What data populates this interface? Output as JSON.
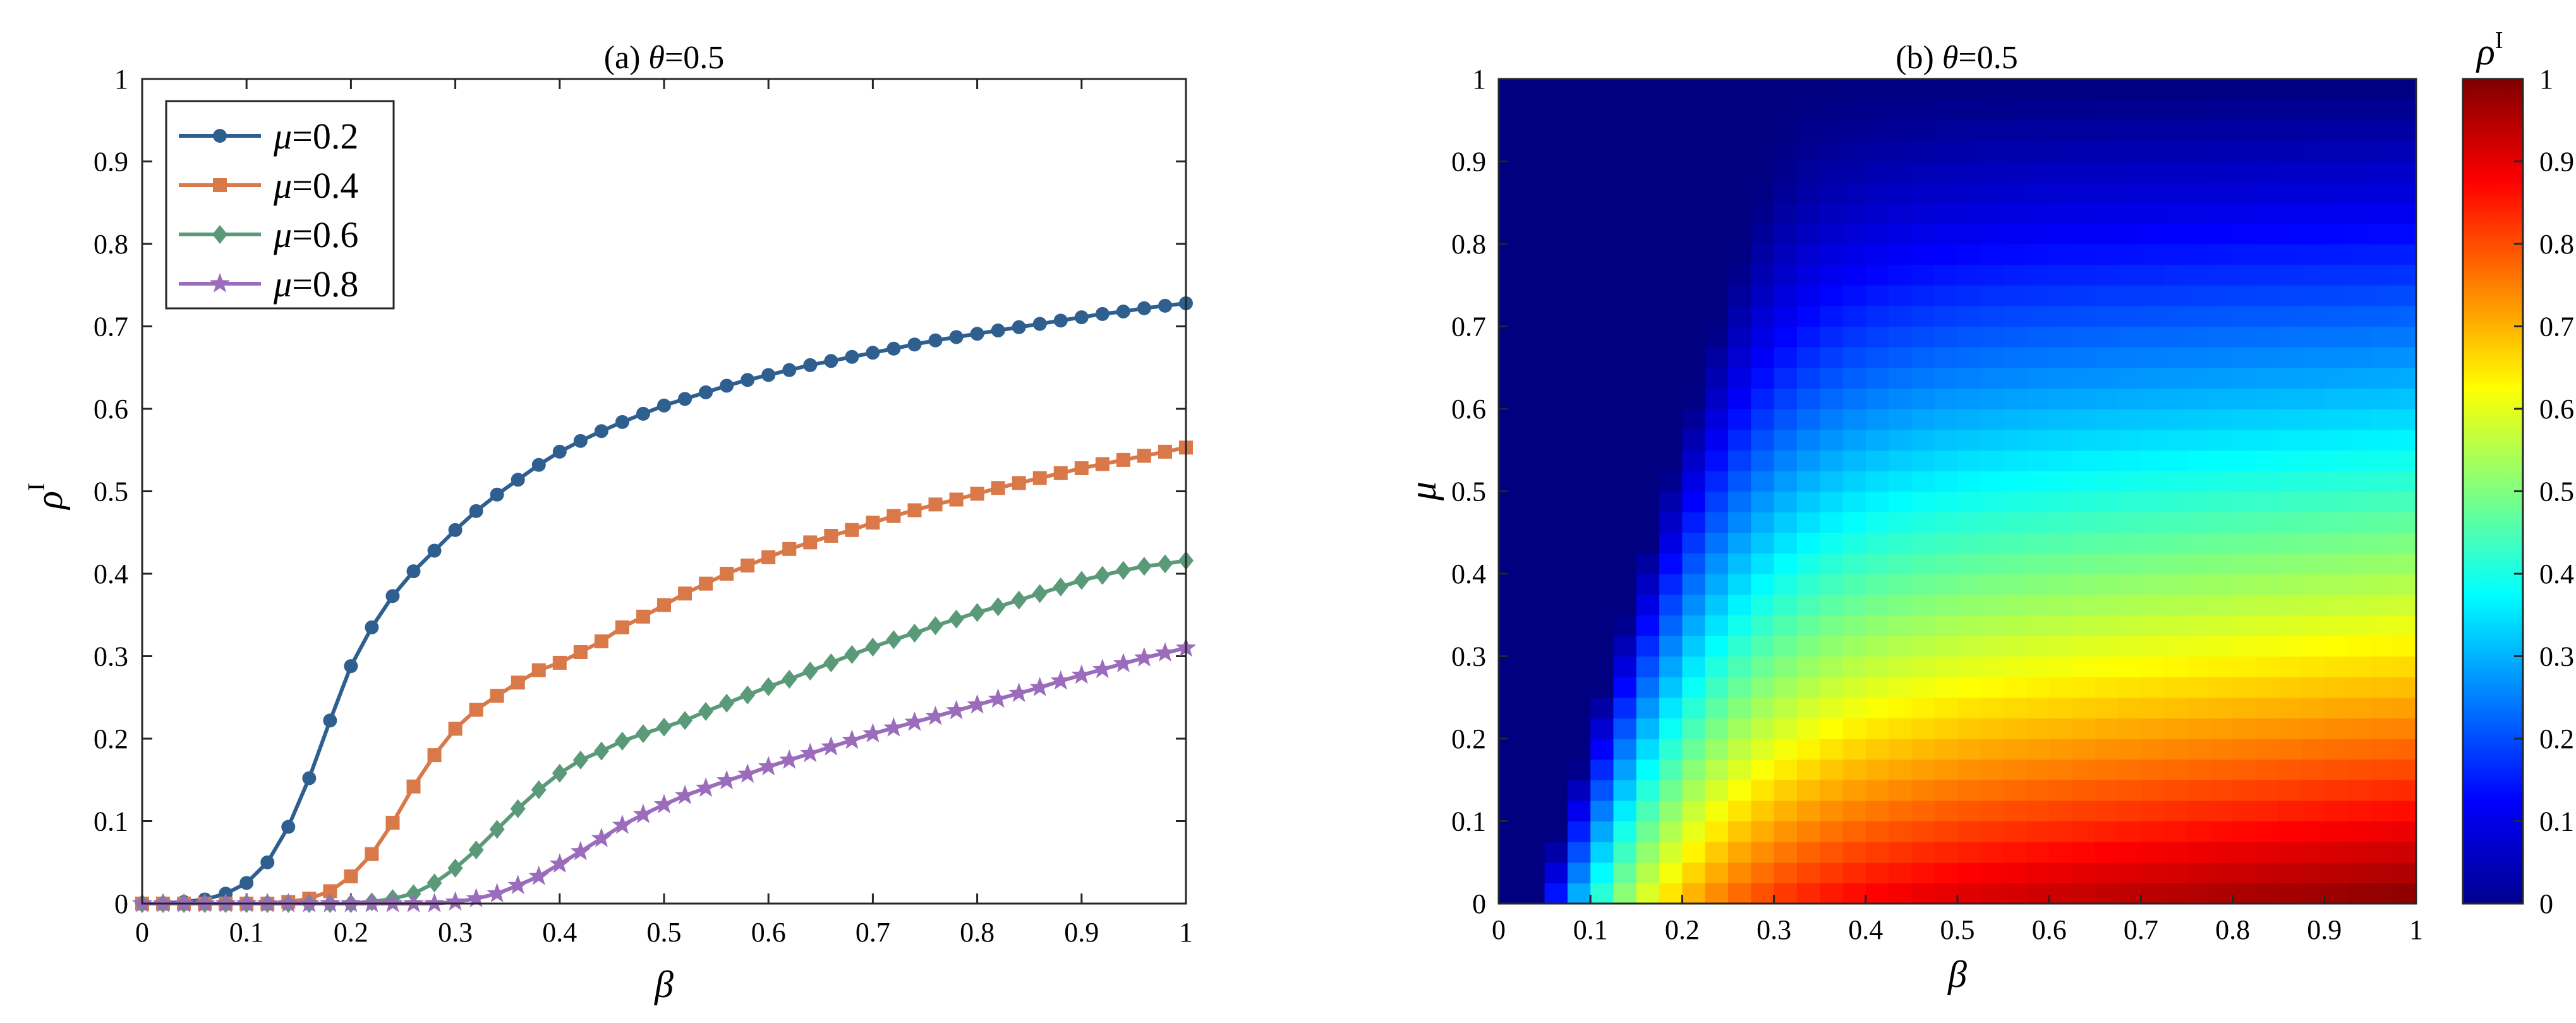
{
  "chart_data": [
    {
      "type": "line",
      "title_prefix": "(a) ",
      "title_var": "θ",
      "title_rest": "=0.5",
      "xlabel": "β",
      "ylabel": "ρ",
      "ylabel_sup": "I",
      "xlim": [
        0,
        1
      ],
      "ylim": [
        0,
        1
      ],
      "xticks": [
        "0",
        "0.1",
        "0.2",
        "0.3",
        "0.4",
        "0.5",
        "0.6",
        "0.7",
        "0.8",
        "0.9",
        "1"
      ],
      "yticks": [
        "0",
        "0.1",
        "0.2",
        "0.3",
        "0.4",
        "0.5",
        "0.6",
        "0.7",
        "0.8",
        "0.9",
        "1"
      ],
      "legend_position": "top-left",
      "series": [
        {
          "name": "=0.2",
          "name_var": "μ",
          "color": "#2e5f8f",
          "marker": "circle",
          "x": [
            0,
            0.02,
            0.04,
            0.06,
            0.08,
            0.1,
            0.12,
            0.14,
            0.16,
            0.18,
            0.2,
            0.22,
            0.24,
            0.26,
            0.28,
            0.3,
            0.32,
            0.34,
            0.36,
            0.38,
            0.4,
            0.42,
            0.44,
            0.46,
            0.48,
            0.5,
            0.52,
            0.54,
            0.56,
            0.58,
            0.6,
            0.62,
            0.64,
            0.66,
            0.68,
            0.7,
            0.72,
            0.74,
            0.76,
            0.78,
            0.8,
            0.82,
            0.84,
            0.86,
            0.88,
            0.9,
            0.92,
            0.94,
            0.96,
            0.98,
            1.0
          ],
          "y": [
            0,
            0,
            0.002,
            0.005,
            0.012,
            0.025,
            0.05,
            0.093,
            0.152,
            0.222,
            0.288,
            0.335,
            0.373,
            0.403,
            0.428,
            0.453,
            0.476,
            0.496,
            0.514,
            0.532,
            0.548,
            0.561,
            0.573,
            0.584,
            0.594,
            0.604,
            0.612,
            0.62,
            0.628,
            0.635,
            0.641,
            0.647,
            0.653,
            0.658,
            0.663,
            0.668,
            0.673,
            0.678,
            0.683,
            0.687,
            0.691,
            0.695,
            0.699,
            0.703,
            0.707,
            0.711,
            0.715,
            0.718,
            0.722,
            0.725,
            0.728
          ]
        },
        {
          "name": "=0.4",
          "name_var": "μ",
          "color": "#d9794a",
          "marker": "square",
          "x": [
            0,
            0.02,
            0.04,
            0.06,
            0.08,
            0.1,
            0.12,
            0.14,
            0.16,
            0.18,
            0.2,
            0.22,
            0.24,
            0.26,
            0.28,
            0.3,
            0.32,
            0.34,
            0.36,
            0.38,
            0.4,
            0.42,
            0.44,
            0.46,
            0.48,
            0.5,
            0.52,
            0.54,
            0.56,
            0.58,
            0.6,
            0.62,
            0.64,
            0.66,
            0.68,
            0.7,
            0.72,
            0.74,
            0.76,
            0.78,
            0.8,
            0.82,
            0.84,
            0.86,
            0.88,
            0.9,
            0.92,
            0.94,
            0.96,
            0.98,
            1.0
          ],
          "y": [
            0,
            0,
            0,
            0,
            0,
            0,
            0,
            0.002,
            0.006,
            0.015,
            0.033,
            0.06,
            0.098,
            0.142,
            0.18,
            0.212,
            0.235,
            0.252,
            0.268,
            0.283,
            0.292,
            0.305,
            0.318,
            0.335,
            0.348,
            0.362,
            0.376,
            0.388,
            0.4,
            0.41,
            0.42,
            0.43,
            0.438,
            0.446,
            0.453,
            0.462,
            0.47,
            0.477,
            0.484,
            0.49,
            0.497,
            0.504,
            0.51,
            0.516,
            0.522,
            0.528,
            0.533,
            0.538,
            0.543,
            0.548,
            0.553
          ]
        },
        {
          "name": "=0.6",
          "name_var": "μ",
          "color": "#5a9a78",
          "marker": "diamond",
          "x": [
            0,
            0.02,
            0.04,
            0.06,
            0.08,
            0.1,
            0.12,
            0.14,
            0.16,
            0.18,
            0.2,
            0.22,
            0.24,
            0.26,
            0.28,
            0.3,
            0.32,
            0.34,
            0.36,
            0.38,
            0.4,
            0.42,
            0.44,
            0.46,
            0.48,
            0.5,
            0.52,
            0.54,
            0.56,
            0.58,
            0.6,
            0.62,
            0.64,
            0.66,
            0.68,
            0.7,
            0.72,
            0.74,
            0.76,
            0.78,
            0.8,
            0.82,
            0.84,
            0.86,
            0.88,
            0.9,
            0.92,
            0.94,
            0.96,
            0.98,
            1.0
          ],
          "y": [
            0,
            0,
            0,
            0,
            0,
            0,
            0,
            0,
            0,
            0,
            0,
            0.002,
            0.006,
            0.012,
            0.025,
            0.043,
            0.065,
            0.09,
            0.115,
            0.138,
            0.158,
            0.174,
            0.185,
            0.197,
            0.206,
            0.214,
            0.222,
            0.233,
            0.243,
            0.253,
            0.263,
            0.272,
            0.282,
            0.292,
            0.302,
            0.311,
            0.32,
            0.328,
            0.337,
            0.345,
            0.353,
            0.36,
            0.368,
            0.376,
            0.384,
            0.392,
            0.398,
            0.404,
            0.409,
            0.412,
            0.416
          ]
        },
        {
          "name": "=0.8",
          "name_var": "μ",
          "color": "#9b6cbc",
          "marker": "star",
          "x": [
            0,
            0.02,
            0.04,
            0.06,
            0.08,
            0.1,
            0.12,
            0.14,
            0.16,
            0.18,
            0.2,
            0.22,
            0.24,
            0.26,
            0.28,
            0.3,
            0.32,
            0.34,
            0.36,
            0.38,
            0.4,
            0.42,
            0.44,
            0.46,
            0.48,
            0.5,
            0.52,
            0.54,
            0.56,
            0.58,
            0.6,
            0.62,
            0.64,
            0.66,
            0.68,
            0.7,
            0.72,
            0.74,
            0.76,
            0.78,
            0.8,
            0.82,
            0.84,
            0.86,
            0.88,
            0.9,
            0.92,
            0.94,
            0.96,
            0.98,
            1.0
          ],
          "y": [
            0,
            0,
            0,
            0,
            0,
            0,
            0,
            0,
            0,
            0,
            0,
            0,
            0,
            0,
            0,
            0.002,
            0.006,
            0.012,
            0.022,
            0.033,
            0.048,
            0.063,
            0.079,
            0.095,
            0.108,
            0.12,
            0.131,
            0.14,
            0.149,
            0.157,
            0.166,
            0.174,
            0.182,
            0.19,
            0.198,
            0.206,
            0.213,
            0.22,
            0.227,
            0.234,
            0.241,
            0.248,
            0.255,
            0.262,
            0.27,
            0.277,
            0.284,
            0.291,
            0.298,
            0.304,
            0.31
          ]
        }
      ]
    },
    {
      "type": "heatmap",
      "title_prefix": "(b) ",
      "title_var": "θ",
      "title_rest": "=0.5",
      "xlabel": "β",
      "ylabel": "μ",
      "xlim": [
        0,
        1
      ],
      "ylim": [
        0,
        1
      ],
      "grid_cells": [
        40,
        40
      ],
      "xticks": [
        "0",
        "0.1",
        "0.2",
        "0.3",
        "0.4",
        "0.5",
        "0.6",
        "0.7",
        "0.8",
        "0.9",
        "1"
      ],
      "yticks": [
        "0",
        "0.1",
        "0.2",
        "0.3",
        "0.4",
        "0.5",
        "0.6",
        "0.7",
        "0.8",
        "0.9",
        "1"
      ],
      "colorbar": {
        "label": "ρ",
        "label_sup": "I",
        "range": [
          0,
          1
        ],
        "ticks": [
          "0",
          "0.1",
          "0.2",
          "0.3",
          "0.4",
          "0.5",
          "0.6",
          "0.7",
          "0.8",
          "0.9",
          "1"
        ],
        "colormap": "jet"
      }
    }
  ]
}
